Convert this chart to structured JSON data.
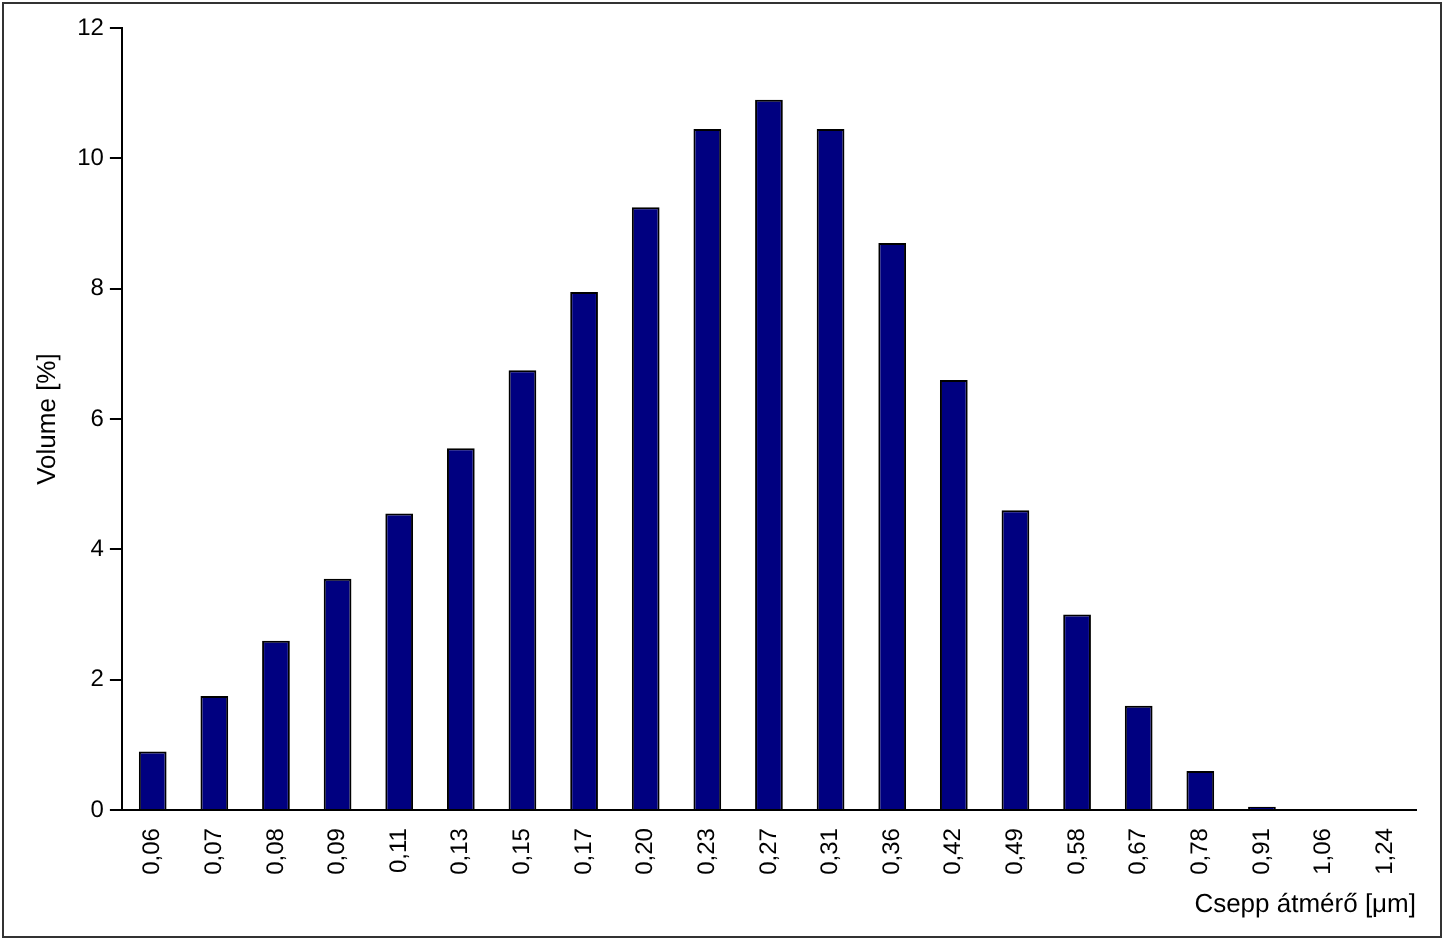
{
  "chart_data": {
    "type": "bar",
    "categories": [
      "0,06",
      "0,07",
      "0,08",
      "0,09",
      "0,11",
      "0,13",
      "0,15",
      "0,17",
      "0,20",
      "0,23",
      "0,27",
      "0,31",
      "0,36",
      "0,42",
      "0,49",
      "0,58",
      "0,67",
      "0,78",
      "0,91",
      "1,06",
      "1,24"
    ],
    "values": [
      0.9,
      1.75,
      2.6,
      3.55,
      4.55,
      5.55,
      6.75,
      7.95,
      9.25,
      10.45,
      10.9,
      10.45,
      8.7,
      6.6,
      4.6,
      3.0,
      1.6,
      0.6,
      0.05,
      0,
      0
    ],
    "color": "#000080",
    "xlabel": "Csepp átmérő [μm]",
    "ylabel": "Volume [%]",
    "ylim": [
      0,
      12
    ],
    "yticks": [
      0,
      2,
      4,
      6,
      8,
      10,
      12
    ],
    "grid": false,
    "legend": false
  }
}
